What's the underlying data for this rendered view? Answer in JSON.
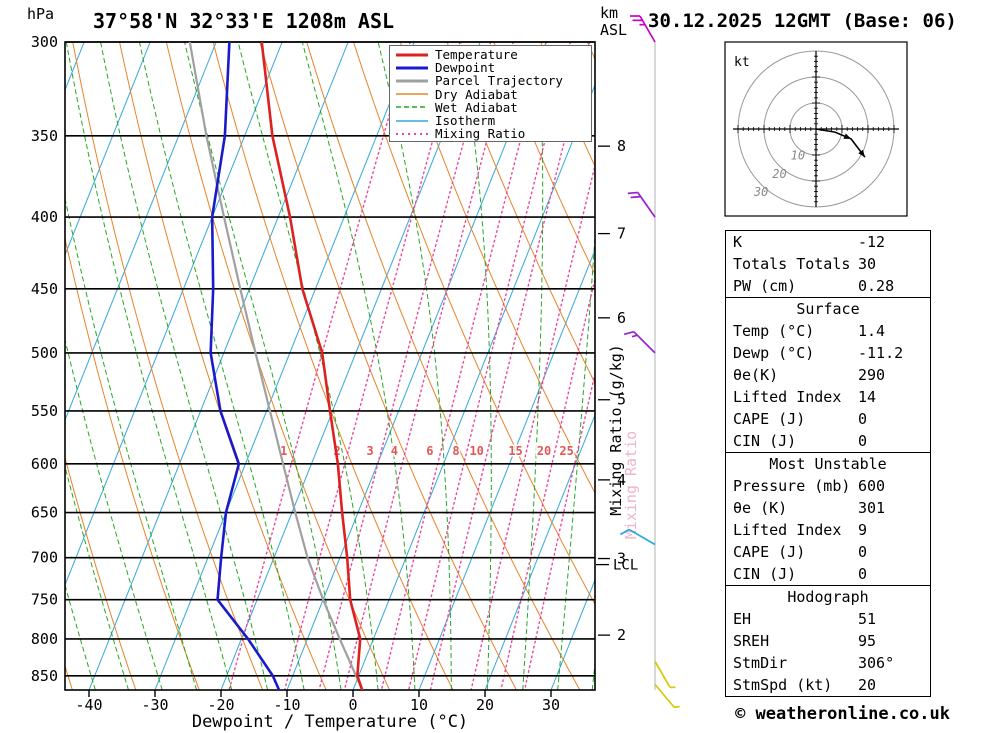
{
  "header": {
    "station": "37°58'N 32°33'E 1208m ASL",
    "datetime": "30.12.2025 12GMT (Base: 06)",
    "pressure_unit": "hPa",
    "altitude_unit_line1": "km",
    "altitude_unit_line2": "ASL"
  },
  "axes": {
    "xlabel": "Dewpoint / Temperature (°C)",
    "pressure_ticks": [
      300,
      350,
      400,
      450,
      500,
      550,
      600,
      650,
      700,
      750,
      800,
      850
    ],
    "temperature_ticks": [
      -40,
      -30,
      -20,
      -10,
      0,
      10,
      20,
      30
    ],
    "km_ticks": [
      8,
      7,
      6,
      5,
      4,
      3,
      2
    ],
    "mixing_ratio_values": [
      1,
      2,
      3,
      4,
      6,
      8,
      10,
      15,
      20,
      25
    ],
    "mixing_ratio_axis_label": "Mixing Ratio (g/kg)",
    "mixing_ratio_ghost_label": "Mixing Ratio",
    "lcl_label": "LCL"
  },
  "legend": {
    "items": [
      {
        "label": "Temperature",
        "color": "#dd2020",
        "dash": "",
        "width": 3
      },
      {
        "label": "Dewpoint",
        "color": "#1a1acc",
        "dash": "",
        "width": 3
      },
      {
        "label": "Parcel Trajectory",
        "color": "#a0a0a0",
        "dash": "",
        "width": 3
      },
      {
        "label": "Dry Adiabat",
        "color": "#e8832a",
        "dash": "",
        "width": 1.5
      },
      {
        "label": "Wet Adiabat",
        "color": "#22a822",
        "dash": "5,3",
        "width": 1.5
      },
      {
        "label": "Isotherm",
        "color": "#35a8dc",
        "dash": "",
        "width": 1.5
      },
      {
        "label": "Mixing Ratio",
        "color": "#ee4499",
        "dash": "2,4",
        "width": 2
      }
    ]
  },
  "chart_data": {
    "type": "skewt_sounding",
    "title": "37°58'N 32°33'E 1208m ASL",
    "xlabel": "Dewpoint / Temperature (°C)",
    "ylabel": "hPa",
    "pressure_range_hpa": [
      300,
      870
    ],
    "temp_axis_range_c": [
      -44,
      37
    ],
    "pressure_hpa": [
      870,
      850,
      800,
      750,
      700,
      650,
      600,
      550,
      500,
      450,
      400,
      350,
      300
    ],
    "temperature_c": [
      1.4,
      -0.2,
      -2.0,
      -5.9,
      -8.9,
      -12.4,
      -16.0,
      -20.4,
      -25.1,
      -32.0,
      -38.2,
      -45.8,
      -53.1
    ],
    "dewpoint_c": [
      -11.2,
      -13.0,
      -19.0,
      -26.0,
      -28.0,
      -30.0,
      -31.0,
      -37.0,
      -42.0,
      -45.5,
      -50.0,
      -53.0,
      -58.0
    ],
    "parcel_c": [
      1.4,
      -0.4,
      -5.1,
      -10.0,
      -14.9,
      -19.5,
      -24.3,
      -29.5,
      -35.2,
      -41.4,
      -48.2,
      -55.8,
      -64.0
    ],
    "lcl_pressure_hpa": 708,
    "wind_barbs": [
      {
        "pressure_hpa": 300,
        "speed_kt": 25,
        "dir_deg": 330,
        "color": "#cc00cc"
      },
      {
        "pressure_hpa": 400,
        "speed_kt": 20,
        "dir_deg": 325,
        "color": "#9920cc"
      },
      {
        "pressure_hpa": 500,
        "speed_kt": 15,
        "dir_deg": 315,
        "color": "#9920cc"
      },
      {
        "pressure_hpa": 685,
        "speed_kt": 10,
        "dir_deg": 300,
        "color": "#22aadd"
      },
      {
        "pressure_hpa": 830,
        "speed_kt": 5,
        "dir_deg": 150,
        "color": "#d8c800"
      },
      {
        "pressure_hpa": 862,
        "speed_kt": 5,
        "dir_deg": 140,
        "color": "#d8c800"
      }
    ],
    "hodograph": {
      "unit": "kt",
      "ring_labels_kt": [
        10,
        20,
        30
      ],
      "trace_uv_kt": [
        [
          0,
          0
        ],
        [
          7.3,
          -1.2
        ],
        [
          13.5,
          -3.8
        ],
        [
          18.8,
          -10.8
        ]
      ]
    }
  },
  "stats": {
    "groups": [
      {
        "header": "",
        "rows": [
          {
            "label": "K",
            "value": "-12"
          },
          {
            "label": "Totals Totals",
            "value": "30"
          },
          {
            "label": "PW (cm)",
            "value": "0.28"
          }
        ]
      },
      {
        "header": "Surface",
        "rows": [
          {
            "label": "Temp (°C)",
            "value": "1.4"
          },
          {
            "label": "Dewp (°C)",
            "value": "-11.2"
          },
          {
            "label": "θe(K)",
            "value": "290"
          },
          {
            "label": "Lifted Index",
            "value": "14"
          },
          {
            "label": "CAPE (J)",
            "value": "0"
          },
          {
            "label": "CIN (J)",
            "value": "0"
          }
        ]
      },
      {
        "header": "Most Unstable",
        "rows": [
          {
            "label": "Pressure (mb)",
            "value": "600"
          },
          {
            "label": "θe (K)",
            "value": "301"
          },
          {
            "label": "Lifted Index",
            "value": "9"
          },
          {
            "label": "CAPE (J)",
            "value": "0"
          },
          {
            "label": "CIN (J)",
            "value": "0"
          }
        ]
      },
      {
        "header": "Hodograph",
        "rows": [
          {
            "label": "EH",
            "value": "51"
          },
          {
            "label": "SREH",
            "value": "95"
          },
          {
            "label": "StmDir",
            "value": "306°"
          },
          {
            "label": "StmSpd (kt)",
            "value": "20"
          }
        ]
      }
    ]
  },
  "footer": {
    "copyright": "© weatheronline.co.uk"
  }
}
